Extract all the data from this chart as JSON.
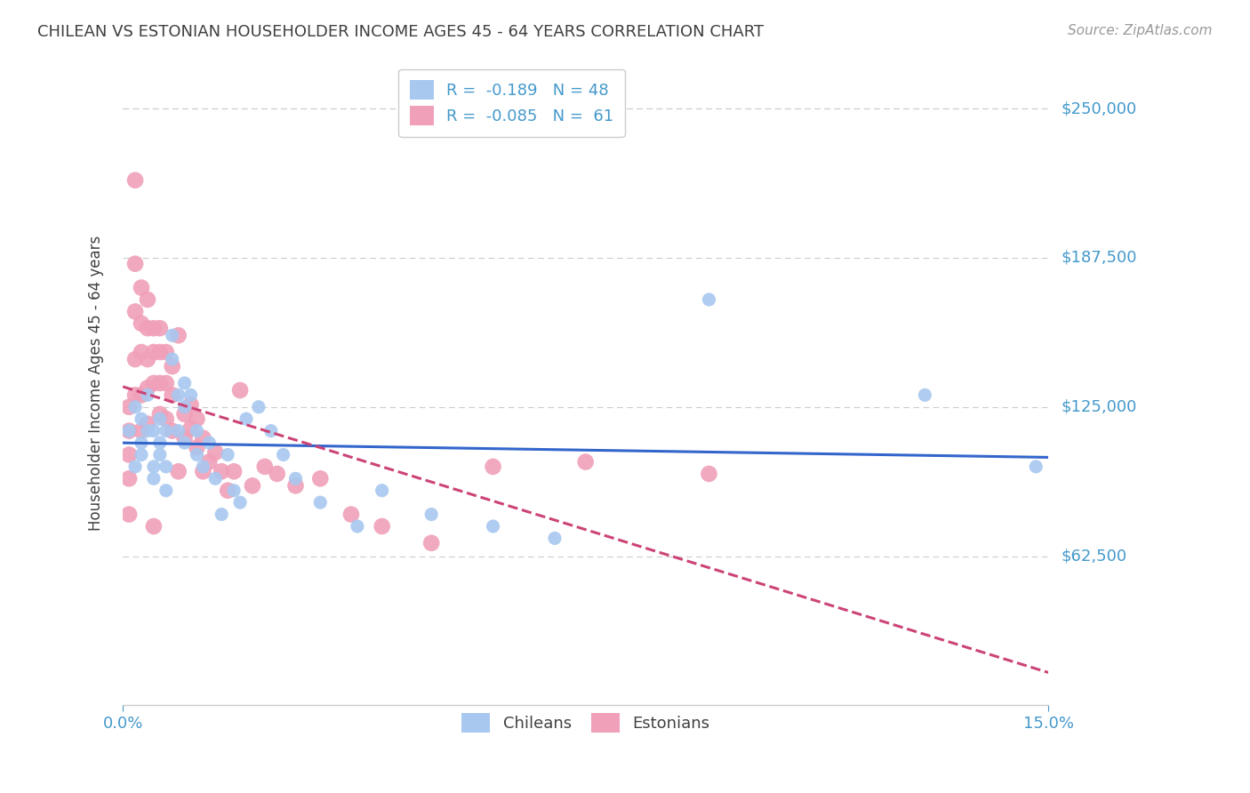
{
  "title": "CHILEAN VS ESTONIAN HOUSEHOLDER INCOME AGES 45 - 64 YEARS CORRELATION CHART",
  "source": "Source: ZipAtlas.com",
  "ylabel": "Householder Income Ages 45 - 64 years",
  "ytick_labels": [
    "$62,500",
    "$125,000",
    "$187,500",
    "$250,000"
  ],
  "ytick_values": [
    62500,
    125000,
    187500,
    250000
  ],
  "ymin": 0,
  "ymax": 270000,
  "xmin": 0.0,
  "xmax": 0.15,
  "legend_blue_r": "-0.189",
  "legend_blue_n": "48",
  "legend_pink_r": "-0.085",
  "legend_pink_n": "61",
  "blue_color": "#a8c8f0",
  "pink_color": "#f0a0b8",
  "blue_line_color": "#3366cc",
  "pink_line_color": "#cc4477",
  "bg_color": "#ffffff",
  "grid_color": "#cccccc",
  "title_color": "#404040",
  "axis_label_color": "#4499cc",
  "chileans_x": [
    0.001,
    0.002,
    0.002,
    0.003,
    0.003,
    0.003,
    0.004,
    0.004,
    0.005,
    0.005,
    0.005,
    0.006,
    0.006,
    0.006,
    0.007,
    0.007,
    0.007,
    0.008,
    0.008,
    0.009,
    0.009,
    0.01,
    0.01,
    0.01,
    0.011,
    0.012,
    0.012,
    0.013,
    0.014,
    0.015,
    0.016,
    0.017,
    0.018,
    0.019,
    0.02,
    0.022,
    0.024,
    0.026,
    0.028,
    0.032,
    0.038,
    0.042,
    0.05,
    0.06,
    0.07,
    0.095,
    0.13,
    0.148
  ],
  "chileans_y": [
    115000,
    100000,
    125000,
    120000,
    110000,
    105000,
    130000,
    115000,
    100000,
    115000,
    95000,
    110000,
    120000,
    105000,
    115000,
    100000,
    90000,
    155000,
    145000,
    130000,
    115000,
    135000,
    125000,
    110000,
    130000,
    115000,
    105000,
    100000,
    110000,
    95000,
    80000,
    105000,
    90000,
    85000,
    120000,
    125000,
    115000,
    105000,
    95000,
    85000,
    75000,
    90000,
    80000,
    75000,
    70000,
    170000,
    130000,
    100000
  ],
  "chileans_size": [
    120,
    120,
    120,
    120,
    120,
    120,
    120,
    120,
    120,
    120,
    120,
    120,
    120,
    120,
    120,
    120,
    120,
    120,
    120,
    120,
    120,
    120,
    120,
    120,
    120,
    120,
    120,
    120,
    120,
    120,
    120,
    120,
    120,
    120,
    120,
    120,
    120,
    120,
    120,
    120,
    120,
    120,
    120,
    120,
    120,
    120,
    120,
    120
  ],
  "estonians_x": [
    0.001,
    0.001,
    0.001,
    0.001,
    0.001,
    0.002,
    0.002,
    0.002,
    0.002,
    0.002,
    0.003,
    0.003,
    0.003,
    0.003,
    0.003,
    0.004,
    0.004,
    0.004,
    0.004,
    0.004,
    0.005,
    0.005,
    0.005,
    0.005,
    0.006,
    0.006,
    0.006,
    0.006,
    0.007,
    0.007,
    0.007,
    0.008,
    0.008,
    0.008,
    0.009,
    0.009,
    0.01,
    0.01,
    0.011,
    0.011,
    0.012,
    0.012,
    0.013,
    0.013,
    0.014,
    0.015,
    0.016,
    0.017,
    0.018,
    0.019,
    0.021,
    0.023,
    0.025,
    0.028,
    0.032,
    0.037,
    0.042,
    0.05,
    0.06,
    0.075,
    0.095
  ],
  "estonians_y": [
    125000,
    115000,
    105000,
    95000,
    80000,
    220000,
    185000,
    165000,
    145000,
    130000,
    175000,
    160000,
    148000,
    130000,
    115000,
    170000,
    158000,
    145000,
    133000,
    118000,
    158000,
    148000,
    135000,
    75000,
    158000,
    148000,
    135000,
    122000,
    148000,
    135000,
    120000,
    142000,
    130000,
    115000,
    155000,
    98000,
    122000,
    112000,
    126000,
    116000,
    120000,
    108000,
    112000,
    98000,
    102000,
    106000,
    98000,
    90000,
    98000,
    132000,
    92000,
    100000,
    97000,
    92000,
    95000,
    80000,
    75000,
    68000,
    100000,
    102000,
    97000
  ]
}
